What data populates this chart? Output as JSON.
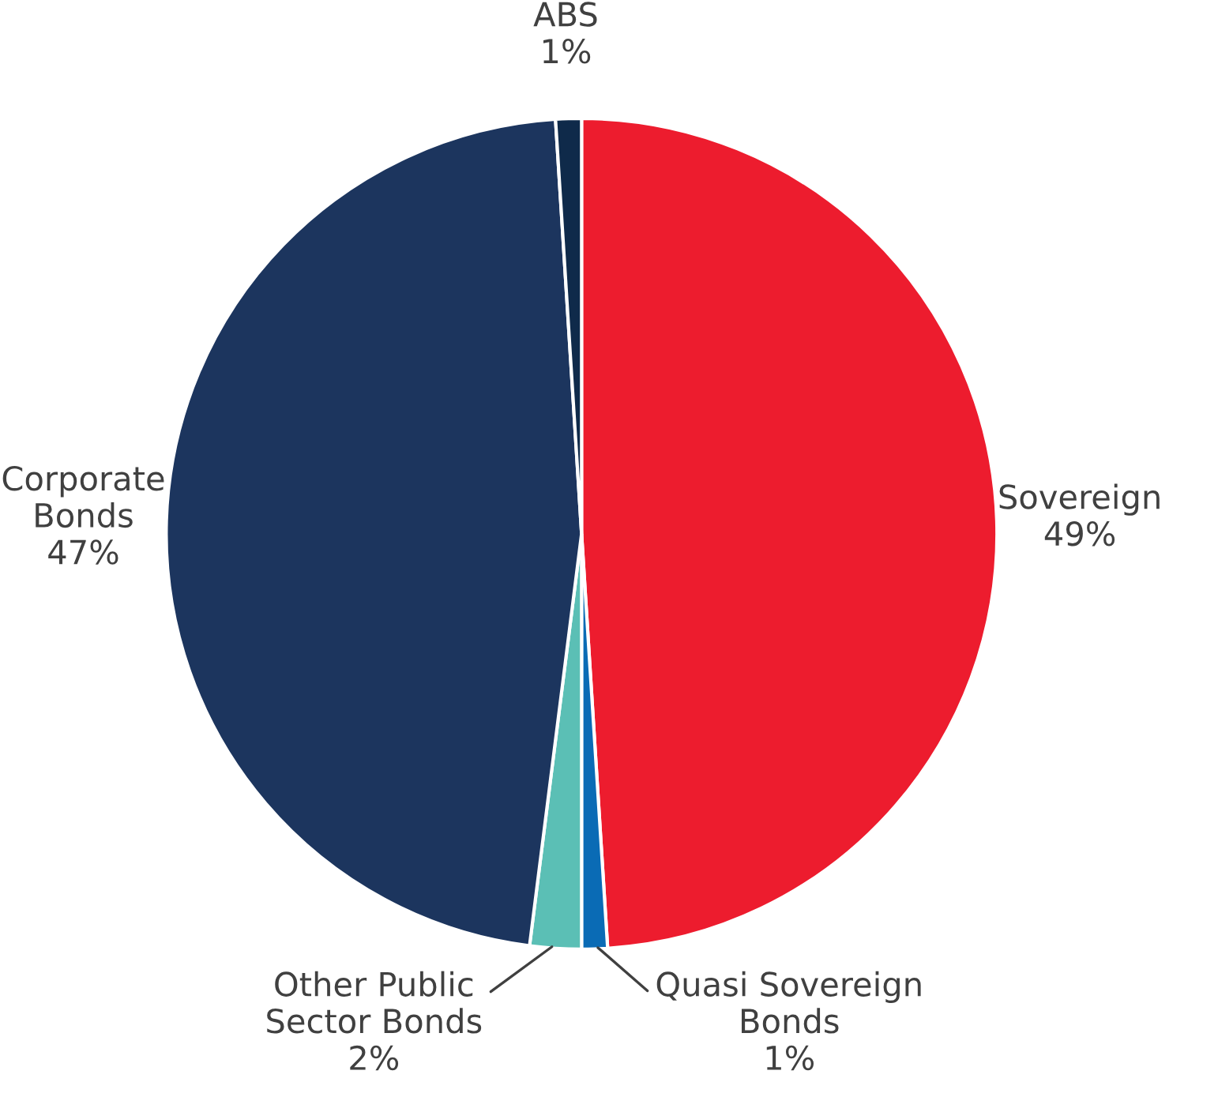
{
  "chart_data": {
    "type": "pie",
    "categories": [
      "Sovereign",
      "Quasi Sovereign\nBonds",
      "Other Public\nSector Bonds",
      "Corporate\nBonds",
      "ABS"
    ],
    "values": [
      49,
      1,
      2,
      47,
      1
    ],
    "colors": [
      "#ed1c2e",
      "#0a6bb5",
      "#5bbfb5",
      "#1c355e",
      "#0f2a4a"
    ],
    "value_labels": [
      "49%",
      "1%",
      "2%",
      "47%",
      "1%"
    ],
    "legend": false
  }
}
